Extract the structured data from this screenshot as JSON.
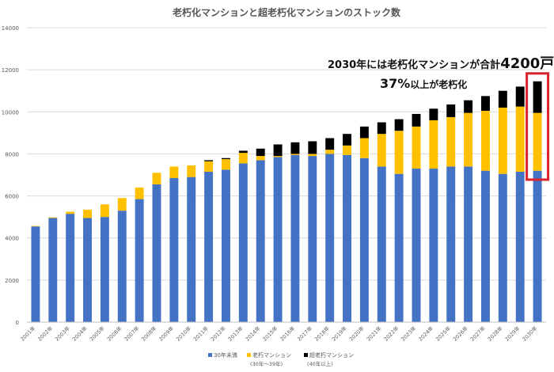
{
  "chart_data": {
    "type": "bar",
    "stacked": true,
    "title": "老朽化マンションと超老朽化マンションのストック数",
    "categories": [
      "2001年",
      "2002年",
      "2003年",
      "2004年",
      "2005年",
      "2006年",
      "2007年",
      "2008年",
      "2009年",
      "2010年",
      "2011年",
      "2012年",
      "2013年",
      "2014年",
      "2015年",
      "2016年",
      "2017年",
      "2018年",
      "2019年",
      "2020年",
      "2021年",
      "2022年",
      "2023年",
      "2024年",
      "2025年",
      "2026年",
      "2027年",
      "2028年",
      "2029年",
      "2030年"
    ],
    "series": [
      {
        "name": "30年未満",
        "color": "#4472C4",
        "values": [
          4550,
          4950,
          5150,
          4950,
          5000,
          5300,
          5850,
          6550,
          6850,
          6900,
          7150,
          7250,
          7550,
          7700,
          7850,
          7950,
          7900,
          8000,
          7950,
          7800,
          7400,
          7050,
          7300,
          7300,
          7400,
          7400,
          7200,
          7050,
          7150,
          7200
        ]
      },
      {
        "name": "老朽マンション",
        "color": "#FFC000",
        "values": [
          20,
          30,
          100,
          400,
          600,
          600,
          550,
          550,
          550,
          550,
          500,
          500,
          500,
          200,
          50,
          50,
          100,
          200,
          450,
          950,
          1550,
          2050,
          2000,
          2300,
          2350,
          2550,
          2850,
          3150,
          3100,
          2750
        ]
      },
      {
        "name": "超老朽マンション",
        "color": "#000000",
        "values": [
          0,
          0,
          0,
          0,
          0,
          0,
          0,
          0,
          0,
          0,
          50,
          50,
          100,
          350,
          550,
          550,
          600,
          550,
          550,
          550,
          550,
          550,
          600,
          550,
          600,
          600,
          700,
          800,
          950,
          1500
        ]
      }
    ],
    "legend_sublabels": [
      "(30年～39年)",
      "(40年以上)"
    ],
    "ylim": [
      0,
      14000
    ],
    "yticks": [
      0,
      2000,
      4000,
      6000,
      8000,
      10000,
      12000,
      14000
    ],
    "grid": true,
    "legend_position": "bottom",
    "highlight_category": "2030年",
    "highlight_color": "#D9232D"
  },
  "annotations": {
    "line1_prefix": "2030年には老朽化マンションが合計",
    "line1_big": "4200戸",
    "line2_big": "37%",
    "line2_suffix": "以上が老朽化"
  }
}
